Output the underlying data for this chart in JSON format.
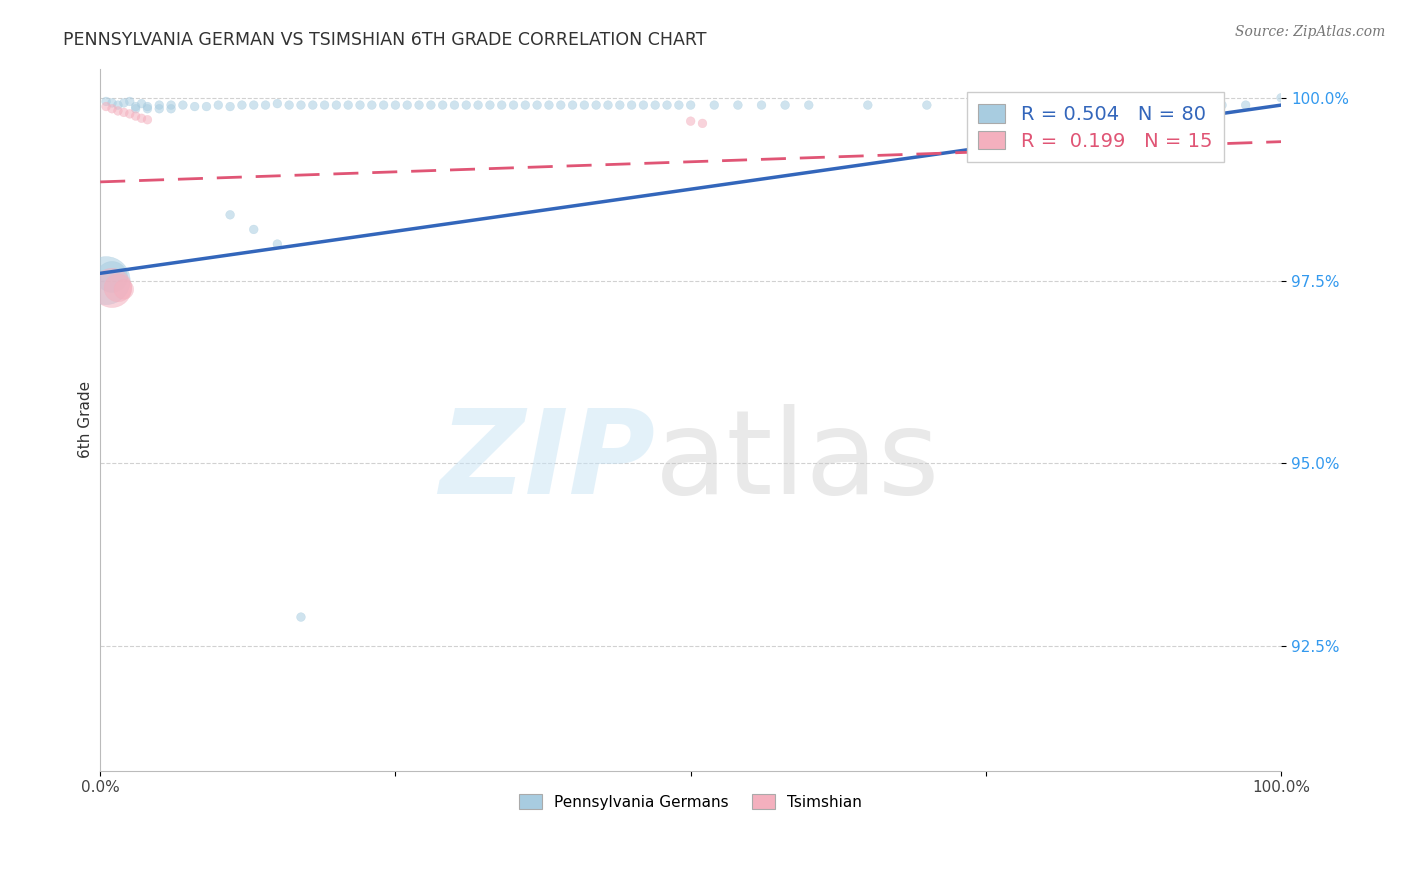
{
  "title": "PENNSYLVANIA GERMAN VS TSIMSHIAN 6TH GRADE CORRELATION CHART",
  "source": "Source: ZipAtlas.com",
  "ylabel": "6th Grade",
  "xlim": [
    0.0,
    1.0
  ],
  "ylim": [
    0.908,
    1.004
  ],
  "x_ticks": [
    0.0,
    0.25,
    0.5,
    0.75,
    1.0
  ],
  "x_tick_labels": [
    "0.0%",
    "",
    "",
    "",
    "100.0%"
  ],
  "y_ticks": [
    0.925,
    0.95,
    0.975,
    1.0
  ],
  "y_tick_labels": [
    "92.5%",
    "95.0%",
    "97.5%",
    "100.0%"
  ],
  "blue_color": "#a8cce0",
  "pink_color": "#f4b0be",
  "blue_line_color": "#3366bb",
  "pink_line_color": "#e05575",
  "legend_blue_label_display": "Pennsylvania Germans",
  "legend_pink_label_display": "Tsimshian",
  "blue_R": 0.504,
  "blue_N": 80,
  "pink_R": 0.199,
  "pink_N": 15,
  "blue_scatter_x": [
    0.005,
    0.01,
    0.015,
    0.02,
    0.025,
    0.03,
    0.03,
    0.035,
    0.04,
    0.04,
    0.05,
    0.05,
    0.06,
    0.06,
    0.07,
    0.08,
    0.09,
    0.1,
    0.11,
    0.12,
    0.13,
    0.14,
    0.15,
    0.16,
    0.17,
    0.18,
    0.19,
    0.2,
    0.21,
    0.22,
    0.23,
    0.24,
    0.25,
    0.26,
    0.27,
    0.28,
    0.29,
    0.3,
    0.31,
    0.32,
    0.33,
    0.34,
    0.35,
    0.36,
    0.37,
    0.38,
    0.39,
    0.4,
    0.41,
    0.42,
    0.43,
    0.44,
    0.45,
    0.46,
    0.47,
    0.48,
    0.49,
    0.5,
    0.52,
    0.54,
    0.56,
    0.58,
    0.6,
    0.65,
    0.7,
    0.75,
    0.8,
    0.85,
    0.87,
    0.9,
    0.92,
    0.95,
    0.97,
    1.0,
    0.11,
    0.13,
    0.15,
    0.005,
    0.01,
    0.17
  ],
  "blue_scatter_y": [
    0.9995,
    0.9993,
    0.999,
    0.9993,
    0.9995,
    0.9988,
    0.9985,
    0.9992,
    0.9988,
    0.9985,
    0.999,
    0.9985,
    0.999,
    0.9985,
    0.999,
    0.9988,
    0.9988,
    0.999,
    0.9988,
    0.999,
    0.999,
    0.999,
    0.9992,
    0.999,
    0.999,
    0.999,
    0.999,
    0.999,
    0.999,
    0.999,
    0.999,
    0.999,
    0.999,
    0.999,
    0.999,
    0.999,
    0.999,
    0.999,
    0.999,
    0.999,
    0.999,
    0.999,
    0.999,
    0.999,
    0.999,
    0.999,
    0.999,
    0.999,
    0.999,
    0.999,
    0.999,
    0.999,
    0.999,
    0.999,
    0.999,
    0.999,
    0.999,
    0.999,
    0.999,
    0.999,
    0.999,
    0.999,
    0.999,
    0.999,
    0.999,
    0.999,
    0.999,
    0.999,
    0.999,
    0.999,
    0.999,
    0.999,
    0.999,
    1.0,
    0.984,
    0.982,
    0.98,
    0.975,
    0.9755,
    0.929
  ],
  "blue_scatter_sizes": [
    40,
    40,
    40,
    40,
    40,
    40,
    40,
    40,
    40,
    40,
    40,
    40,
    40,
    40,
    40,
    40,
    40,
    40,
    40,
    40,
    40,
    40,
    40,
    40,
    40,
    40,
    40,
    40,
    40,
    40,
    40,
    40,
    40,
    40,
    40,
    40,
    40,
    40,
    40,
    40,
    40,
    40,
    40,
    40,
    40,
    40,
    40,
    40,
    40,
    40,
    40,
    40,
    40,
    40,
    40,
    40,
    40,
    40,
    40,
    40,
    40,
    40,
    40,
    40,
    40,
    40,
    40,
    40,
    40,
    40,
    40,
    40,
    40,
    40,
    40,
    40,
    40,
    1200,
    500,
    40
  ],
  "pink_scatter_x": [
    0.005,
    0.01,
    0.015,
    0.02,
    0.025,
    0.03,
    0.035,
    0.04,
    0.5,
    0.51,
    0.78,
    0.79,
    0.01,
    0.015,
    0.02
  ],
  "pink_scatter_y": [
    0.9988,
    0.9985,
    0.9982,
    0.998,
    0.9978,
    0.9975,
    0.9972,
    0.997,
    0.9968,
    0.9965,
    0.9965,
    0.9962,
    0.974,
    0.974,
    0.9738
  ],
  "pink_scatter_sizes": [
    40,
    40,
    40,
    40,
    40,
    40,
    40,
    40,
    40,
    40,
    40,
    40,
    800,
    400,
    200
  ],
  "blue_trend_x0": 0.0,
  "blue_trend_x1": 1.0,
  "blue_trend_y0": 0.976,
  "blue_trend_y1": 0.999,
  "pink_trend_x0": 0.0,
  "pink_trend_x1": 1.0,
  "pink_trend_y0": 0.9885,
  "pink_trend_y1": 0.994
}
